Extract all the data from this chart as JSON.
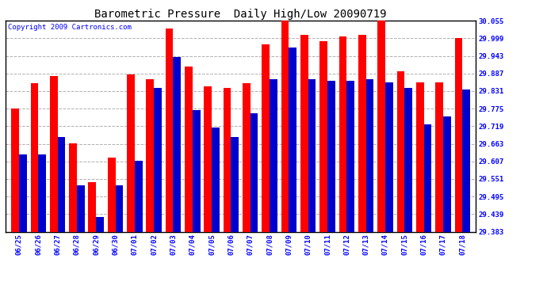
{
  "title": "Barometric Pressure  Daily High/Low 20090719",
  "copyright": "Copyright 2009 Cartronics.com",
  "categories": [
    "06/25",
    "06/26",
    "06/27",
    "06/28",
    "06/29",
    "06/30",
    "07/01",
    "07/02",
    "07/03",
    "07/04",
    "07/05",
    "07/06",
    "07/07",
    "07/08",
    "07/09",
    "07/10",
    "07/11",
    "07/12",
    "07/13",
    "07/14",
    "07/15",
    "07/16",
    "07/17",
    "07/18"
  ],
  "highs": [
    29.775,
    29.855,
    29.88,
    29.665,
    29.54,
    29.62,
    29.885,
    29.87,
    30.03,
    29.91,
    29.845,
    29.84,
    29.855,
    29.98,
    30.06,
    30.01,
    29.99,
    30.005,
    30.01,
    30.065,
    29.895,
    29.86,
    29.86,
    29.999
  ],
  "lows": [
    29.63,
    29.63,
    29.685,
    29.53,
    29.43,
    29.53,
    29.61,
    29.84,
    29.94,
    29.77,
    29.715,
    29.685,
    29.76,
    29.87,
    29.97,
    29.87,
    29.865,
    29.865,
    29.87,
    29.86,
    29.84,
    29.725,
    29.75,
    29.835
  ],
  "high_color": "#ff0000",
  "low_color": "#0000cc",
  "background_color": "#ffffff",
  "grid_color": "#b0b0b0",
  "ymin": 29.383,
  "ymax": 30.055,
  "yticks": [
    29.383,
    29.439,
    29.495,
    29.551,
    29.607,
    29.663,
    29.719,
    29.775,
    29.831,
    29.887,
    29.943,
    29.999,
    30.055
  ],
  "bar_width": 0.4,
  "title_fontsize": 10,
  "tick_fontsize": 6.5,
  "copyright_fontsize": 6.5
}
